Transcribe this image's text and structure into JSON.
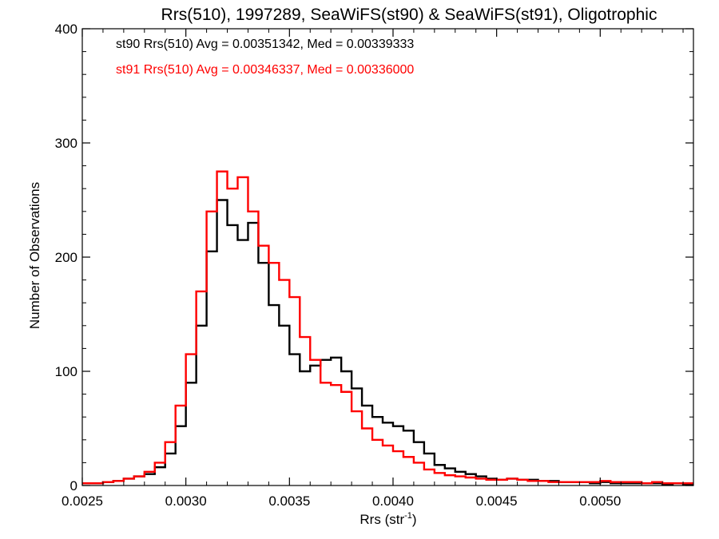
{
  "chart_data": {
    "type": "line",
    "title": "Rrs(510), 1997289, SeaWiFS(st90) & SeaWiFS(st91), Oligotrophic",
    "xlabel": "Rrs (str",
    "xlabel_sup": "-1",
    "xlabel_close": ")",
    "ylabel": "Number of Observations",
    "xlim": [
      0.0025,
      0.00545
    ],
    "ylim": [
      0,
      400
    ],
    "xticks": [
      0.0025,
      0.003,
      0.0035,
      0.004,
      0.0045,
      0.005
    ],
    "xtick_labels": [
      "0.0025",
      "0.0030",
      "0.0035",
      "0.0040",
      "0.0045",
      "0.0050"
    ],
    "yticks": [
      0,
      100,
      200,
      300,
      400
    ],
    "ytick_labels": [
      "0",
      "100",
      "200",
      "300",
      "400"
    ],
    "grid": false,
    "legend_position": "top-left",
    "colors": {
      "st90": "#000000",
      "st91": "#ff0000"
    },
    "series": [
      {
        "name": "st90",
        "legend": "st90 Rrs(510) Avg = 0.00351342, Med = 0.00339333",
        "color": "#000000",
        "x": [
          0.0025,
          0.00255,
          0.0026,
          0.00265,
          0.0027,
          0.00275,
          0.0028,
          0.00285,
          0.0029,
          0.00295,
          0.003,
          0.00305,
          0.0031,
          0.00315,
          0.0032,
          0.00325,
          0.0033,
          0.00335,
          0.0034,
          0.00345,
          0.0035,
          0.00355,
          0.0036,
          0.00365,
          0.0037,
          0.00375,
          0.0038,
          0.00385,
          0.0039,
          0.00395,
          0.004,
          0.00405,
          0.0041,
          0.00415,
          0.0042,
          0.00425,
          0.0043,
          0.00435,
          0.0044,
          0.00445,
          0.0045,
          0.00455,
          0.0046,
          0.00465,
          0.0047,
          0.00475,
          0.0048,
          0.00485,
          0.0049,
          0.00495,
          0.005,
          0.00505,
          0.0051,
          0.00515,
          0.0052,
          0.00525,
          0.0053,
          0.00535,
          0.0054
        ],
        "y": [
          2,
          2,
          3,
          4,
          6,
          8,
          10,
          16,
          28,
          52,
          90,
          140,
          205,
          250,
          228,
          215,
          230,
          195,
          158,
          140,
          115,
          100,
          105,
          110,
          112,
          100,
          85,
          70,
          60,
          55,
          52,
          48,
          38,
          28,
          18,
          15,
          12,
          10,
          8,
          6,
          5,
          6,
          5,
          5,
          4,
          4,
          3,
          3,
          3,
          2,
          3,
          2,
          2,
          2,
          2,
          2,
          1,
          2,
          1
        ]
      },
      {
        "name": "st91",
        "legend": "st91 Rrs(510) Avg = 0.00346337, Med = 0.00336000",
        "color": "#ff0000",
        "x": [
          0.0025,
          0.00255,
          0.0026,
          0.00265,
          0.0027,
          0.00275,
          0.0028,
          0.00285,
          0.0029,
          0.00295,
          0.003,
          0.00305,
          0.0031,
          0.00315,
          0.0032,
          0.00325,
          0.0033,
          0.00335,
          0.0034,
          0.00345,
          0.0035,
          0.00355,
          0.0036,
          0.00365,
          0.0037,
          0.00375,
          0.0038,
          0.00385,
          0.0039,
          0.00395,
          0.004,
          0.00405,
          0.0041,
          0.00415,
          0.0042,
          0.00425,
          0.0043,
          0.00435,
          0.0044,
          0.00445,
          0.0045,
          0.00455,
          0.0046,
          0.00465,
          0.0047,
          0.00475,
          0.0048,
          0.00485,
          0.0049,
          0.00495,
          0.005,
          0.00505,
          0.0051,
          0.00515,
          0.0052,
          0.00525,
          0.0053,
          0.00535,
          0.0054
        ],
        "y": [
          2,
          2,
          3,
          4,
          6,
          8,
          12,
          20,
          38,
          70,
          115,
          170,
          240,
          275,
          260,
          270,
          240,
          210,
          195,
          180,
          165,
          130,
          110,
          90,
          88,
          82,
          65,
          50,
          40,
          35,
          30,
          25,
          20,
          14,
          11,
          9,
          8,
          7,
          6,
          5,
          5,
          6,
          5,
          4,
          4,
          3,
          3,
          3,
          3,
          3,
          4,
          3,
          3,
          3,
          2,
          3,
          2,
          2,
          2
        ]
      }
    ]
  }
}
